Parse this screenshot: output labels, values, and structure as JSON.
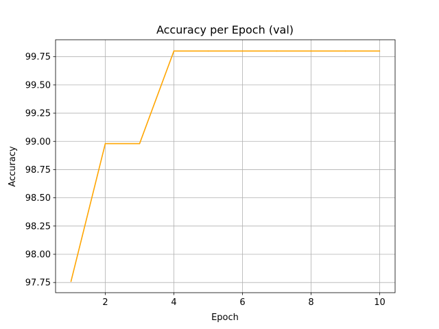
{
  "chart_data": {
    "type": "line",
    "title": "Accuracy per Epoch (val)",
    "xlabel": "Epoch",
    "ylabel": "Accuracy",
    "xlim": [
      0.55,
      10.45
    ],
    "ylim": [
      97.66,
      99.9
    ],
    "x_ticks": [
      2,
      4,
      6,
      8,
      10
    ],
    "x_tick_labels": [
      "2",
      "4",
      "6",
      "8",
      "10"
    ],
    "y_ticks": [
      97.75,
      98.0,
      98.25,
      98.5,
      98.75,
      99.0,
      99.25,
      99.5,
      99.75
    ],
    "y_tick_labels": [
      "97.75",
      "98.00",
      "98.25",
      "98.50",
      "98.75",
      "99.00",
      "99.25",
      "99.50",
      "99.75"
    ],
    "grid": true,
    "series": [
      {
        "color": "#ffa500",
        "x": [
          1,
          2,
          3,
          4,
          5,
          6,
          7,
          8,
          9,
          10
        ],
        "y": [
          97.76,
          98.98,
          98.98,
          99.8,
          99.8,
          99.8,
          99.8,
          99.8,
          99.8,
          99.8
        ]
      }
    ]
  }
}
